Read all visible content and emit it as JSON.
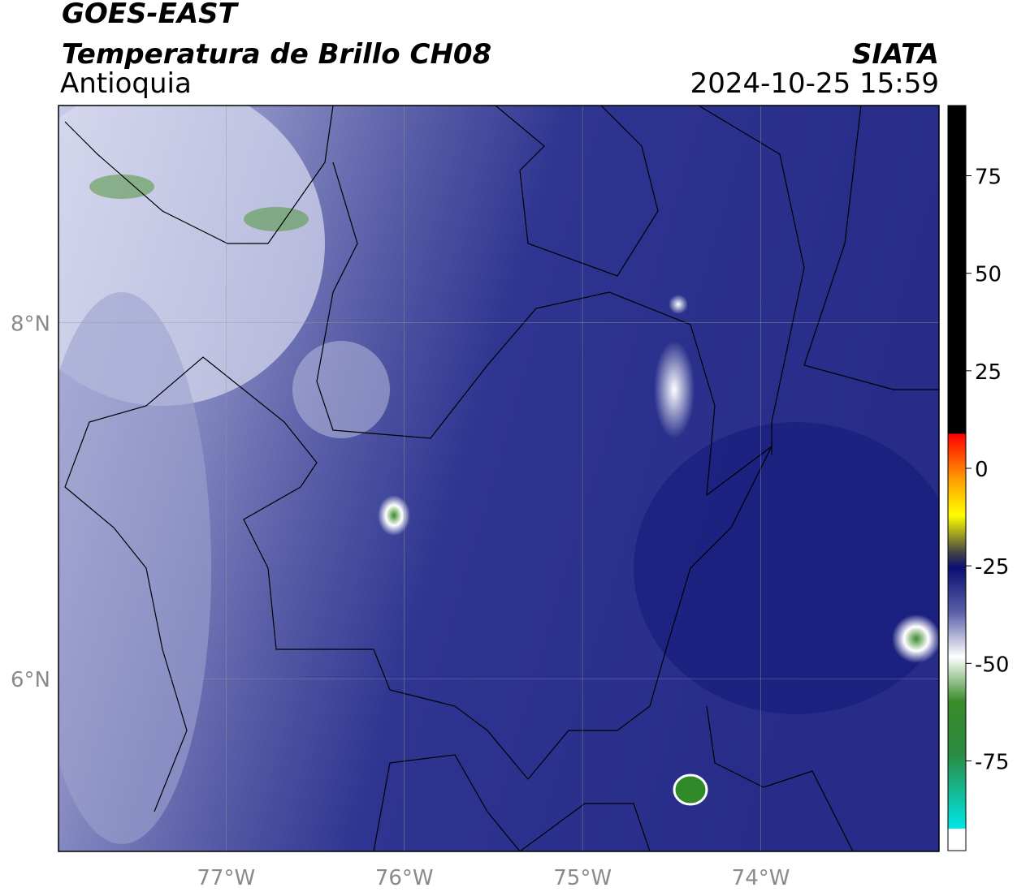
{
  "header": {
    "title": "GOES-EAST",
    "subtitle": "Temperatura de Brillo CH08",
    "region": "Antioquia",
    "source": "SIATA",
    "datetime": "2024-10-25 15:59"
  },
  "map": {
    "lonlim": [
      -77.94,
      -73.0
    ],
    "latlim": [
      5.03,
      9.22
    ],
    "lonticks": [
      {
        "value": -77,
        "label": "77°W"
      },
      {
        "value": -76,
        "label": "76°W"
      },
      {
        "value": -75,
        "label": "75°W"
      },
      {
        "value": -74,
        "label": "74°W"
      }
    ],
    "latticks": [
      {
        "value": 8,
        "label": "8°N"
      },
      {
        "value": 6,
        "label": "6°N"
      }
    ],
    "grid": true
  },
  "colorbar": {
    "lim": [
      -98,
      93
    ],
    "ticks": [
      75,
      50,
      25,
      0,
      -25,
      -50,
      -75
    ]
  }
}
